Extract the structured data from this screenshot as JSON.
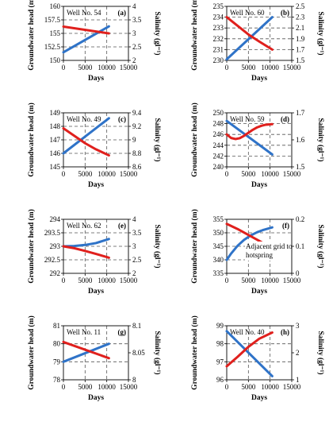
{
  "colors": {
    "head": "#2f73c8",
    "salinity": "#e0201d",
    "grid": "#555555",
    "axis": "#000000"
  },
  "chart_data": [
    {
      "type": "line",
      "panel": "(a)",
      "well": "Well No. 54",
      "xlabel": "Days",
      "ylabel": "Groundwater head (m)",
      "y2label": "Salinity (gl⁻¹)",
      "xlim": [
        0,
        15000
      ],
      "xticks": [
        "0",
        "5000",
        "10000",
        "15000"
      ],
      "ylim": [
        150,
        160
      ],
      "yticks": [
        "150",
        "152.5",
        "155",
        "157.5",
        "160"
      ],
      "y2lim": [
        2,
        4
      ],
      "y2ticks": [
        "2",
        "2.5",
        "3",
        "3.5",
        "4"
      ],
      "grid": true,
      "series": [
        {
          "axis": "left",
          "role": "head",
          "x": [
            0,
            10500
          ],
          "y": [
            151.5,
            156.3
          ]
        },
        {
          "axis": "right",
          "role": "salinity",
          "x": [
            0,
            10500
          ],
          "y": [
            3.25,
            3.0
          ]
        }
      ]
    },
    {
      "type": "line",
      "panel": "(b)",
      "well": "Well No. 60",
      "xlabel": "Days",
      "ylabel": "Groundwater head (m)",
      "y2label": "Salinity (gl⁻¹)",
      "xlim": [
        0,
        15000
      ],
      "xticks": [
        "0",
        "5000",
        "10000",
        "15000"
      ],
      "ylim": [
        230,
        235
      ],
      "yticks": [
        "230",
        "231",
        "232",
        "233",
        "234",
        "235"
      ],
      "y2lim": [
        1.5,
        2.5
      ],
      "y2ticks": [
        "1.5",
        "1.7",
        "1.9",
        "2.1",
        "2.3",
        "2.5"
      ],
      "grid": true,
      "series": [
        {
          "axis": "left",
          "role": "head",
          "x": [
            0,
            10500
          ],
          "y": [
            230.1,
            234.0
          ]
        },
        {
          "axis": "right",
          "role": "salinity",
          "x": [
            0,
            2500,
            5000,
            7500,
            10500
          ],
          "y": [
            2.3,
            2.14,
            1.98,
            1.85,
            1.7
          ]
        }
      ]
    },
    {
      "type": "line",
      "panel": "(c)",
      "well": "Well No. 49",
      "xlabel": "Days",
      "ylabel": "Groundwater head (m)",
      "y2label": "Salinity (gl⁻¹)",
      "xlim": [
        0,
        15000
      ],
      "xticks": [
        "0",
        "5000",
        "10000",
        "15000"
      ],
      "ylim": [
        145,
        149
      ],
      "yticks": [
        "145",
        "146",
        "147",
        "148",
        "149"
      ],
      "y2lim": [
        8.6,
        9.4
      ],
      "y2ticks": [
        "8.6",
        "8.8",
        "9",
        "9.2",
        "9.4"
      ],
      "grid": true,
      "series": [
        {
          "axis": "left",
          "role": "head",
          "x": [
            0,
            10500
          ],
          "y": [
            146.0,
            148.6
          ]
        },
        {
          "axis": "right",
          "role": "salinity",
          "x": [
            0,
            2500,
            5000,
            7500,
            10500
          ],
          "y": [
            9.17,
            9.06,
            8.95,
            8.86,
            8.77
          ]
        }
      ]
    },
    {
      "type": "line",
      "panel": "(d)",
      "well": "Well No. 59",
      "xlabel": "Days",
      "ylabel": "Groundwater head (m)",
      "y2label": "Salinity (gl⁻¹)",
      "xlim": [
        0,
        15000
      ],
      "xticks": [
        "0",
        "5000",
        "10000",
        "15000"
      ],
      "ylim": [
        240,
        250
      ],
      "yticks": [
        "240",
        "242",
        "244",
        "246",
        "248",
        "250"
      ],
      "y2lim": [
        1.5,
        1.7
      ],
      "y2ticks": [
        "1.5",
        "1.6",
        "1.7"
      ],
      "grid": true,
      "series": [
        {
          "axis": "left",
          "role": "head",
          "x": [
            0,
            10500
          ],
          "y": [
            248.5,
            242.3
          ]
        },
        {
          "axis": "right",
          "role": "salinity",
          "x": [
            0,
            1000,
            2000,
            3000,
            4000,
            5000,
            6000,
            7000,
            8000,
            9000,
            10500
          ],
          "y": [
            1.62,
            1.607,
            1.603,
            1.606,
            1.615,
            1.626,
            1.637,
            1.646,
            1.652,
            1.656,
            1.658
          ]
        }
      ]
    },
    {
      "type": "line",
      "panel": "(e)",
      "well": "Well No. 62",
      "xlabel": "Days",
      "ylabel": "Groundwater head (m)",
      "y2label": "Salinity (gl⁻¹)",
      "xlim": [
        0,
        15000
      ],
      "xticks": [
        "0",
        "5000",
        "10000",
        "15000"
      ],
      "ylim": [
        292,
        294
      ],
      "yticks": [
        "292",
        "292.5",
        "293",
        "293.5",
        "294"
      ],
      "y2lim": [
        2,
        4
      ],
      "y2ticks": [
        "2",
        "2.5",
        "3",
        "3.5",
        "4"
      ],
      "grid": true,
      "series": [
        {
          "axis": "left",
          "role": "head",
          "x": [
            0,
            2500,
            5000,
            7500,
            10500
          ],
          "y": [
            293.0,
            293.01,
            293.05,
            293.12,
            293.27
          ]
        },
        {
          "axis": "right",
          "role": "salinity",
          "x": [
            0,
            2500,
            5000,
            7500,
            10500
          ],
          "y": [
            3.0,
            2.93,
            2.83,
            2.72,
            2.58
          ]
        }
      ]
    },
    {
      "type": "line",
      "panel": "(f)",
      "annotation": "Adjacent grid to hotspring",
      "xlabel": "Days",
      "ylabel": "Groundwater head (m)",
      "y2label": "Salinity (gl⁻¹)",
      "xlim": [
        0,
        15000
      ],
      "xticks": [
        "0",
        "5000",
        "10000",
        "15000"
      ],
      "ylim": [
        335,
        355
      ],
      "yticks": [
        "335",
        "340",
        "345",
        "350",
        "355"
      ],
      "y2lim": [
        0,
        0.2
      ],
      "y2ticks": [
        "0",
        "0.1",
        "0.2"
      ],
      "grid": true,
      "series": [
        {
          "axis": "left",
          "role": "head",
          "x": [
            0,
            1000,
            2500,
            4000,
            5500,
            7000,
            8500,
            10500
          ],
          "y": [
            340.0,
            342.3,
            345.2,
            347.4,
            349.0,
            350.2,
            351.1,
            352.0
          ]
        },
        {
          "axis": "right",
          "role": "salinity",
          "x": [
            0,
            2500,
            5000,
            7500,
            10500
          ],
          "y": [
            0.183,
            0.164,
            0.142,
            0.12,
            0.093
          ]
        }
      ]
    },
    {
      "type": "line",
      "panel": "(g)",
      "well": "Well No. 11",
      "xlabel": "Days",
      "ylabel": "Groundwater head (m)",
      "y2label": "Salinity (gl⁻¹)",
      "xlim": [
        0,
        15000
      ],
      "xticks": [
        "0",
        "5000",
        "10000",
        "15000"
      ],
      "ylim": [
        78,
        81
      ],
      "yticks": [
        "78",
        "79",
        "80",
        "81"
      ],
      "y2lim": [
        8,
        8.1
      ],
      "y2ticks": [
        "8",
        "8.05",
        "8.1"
      ],
      "grid": true,
      "series": [
        {
          "axis": "left",
          "role": "head",
          "x": [
            0,
            10500
          ],
          "y": [
            79.0,
            80.0
          ]
        },
        {
          "axis": "right",
          "role": "salinity",
          "x": [
            0,
            10500
          ],
          "y": [
            8.07,
            8.04
          ]
        }
      ]
    },
    {
      "type": "line",
      "panel": "(h)",
      "well": "Well No. 40",
      "xlabel": "Days",
      "ylabel": "Groundwater head (m)",
      "y2label": "Salinity (gl⁻¹)",
      "xlim": [
        0,
        15000
      ],
      "xticks": [
        "0",
        "5000",
        "10000",
        "15000"
      ],
      "ylim": [
        96,
        99
      ],
      "yticks": [
        "96",
        "97",
        "98",
        "99"
      ],
      "y2lim": [
        1,
        3
      ],
      "y2ticks": [
        "1",
        "2",
        "3"
      ],
      "grid": true,
      "series": [
        {
          "axis": "left",
          "role": "head",
          "x": [
            0,
            10500
          ],
          "y": [
            98.7,
            96.2
          ]
        },
        {
          "axis": "right",
          "role": "salinity",
          "x": [
            0,
            2500,
            5000,
            7500,
            10500
          ],
          "y": [
            1.5,
            1.85,
            2.22,
            2.52,
            2.75
          ]
        }
      ]
    }
  ]
}
